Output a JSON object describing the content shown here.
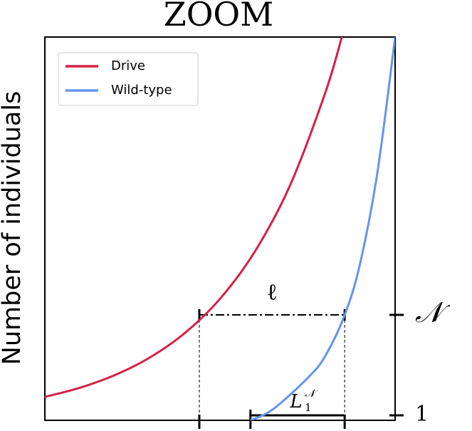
{
  "chart_data": {
    "type": "line",
    "title": "ZOOM",
    "y_label": "Number of individuals",
    "xlim": [
      0,
      100
    ],
    "ylim": [
      0,
      100
    ],
    "legend": "upper left",
    "yticks_right": [
      {
        "value": 27.5,
        "label": "𝒩"
      },
      {
        "value": 1.3,
        "label": "1"
      }
    ],
    "series": [
      {
        "name": "Drive",
        "color": "#d62045",
        "x": [
          0,
          10,
          20,
          30,
          40,
          50,
          60,
          70,
          80,
          84.8
        ],
        "values": [
          6.1,
          8.5,
          11.8,
          16.4,
          22.8,
          31.7,
          44.1,
          61.3,
          85.3,
          100
        ]
      },
      {
        "name": "Wild-type",
        "color": "#6495ed",
        "x": [
          58.7,
          65,
          75,
          80,
          85.6,
          90,
          95,
          100
        ],
        "values": [
          0,
          2.8,
          11,
          16.7,
          27.5,
          40.9,
          65,
          100
        ]
      }
    ],
    "annotations": [
      {
        "text": "ℓ",
        "x": [
          44.1,
          85.6
        ],
        "y": 27.5
      },
      {
        "text": "L",
        "sub": "1",
        "sup": "𝒩",
        "x": [
          58.7,
          85.6
        ],
        "y": 1.3
      }
    ]
  }
}
